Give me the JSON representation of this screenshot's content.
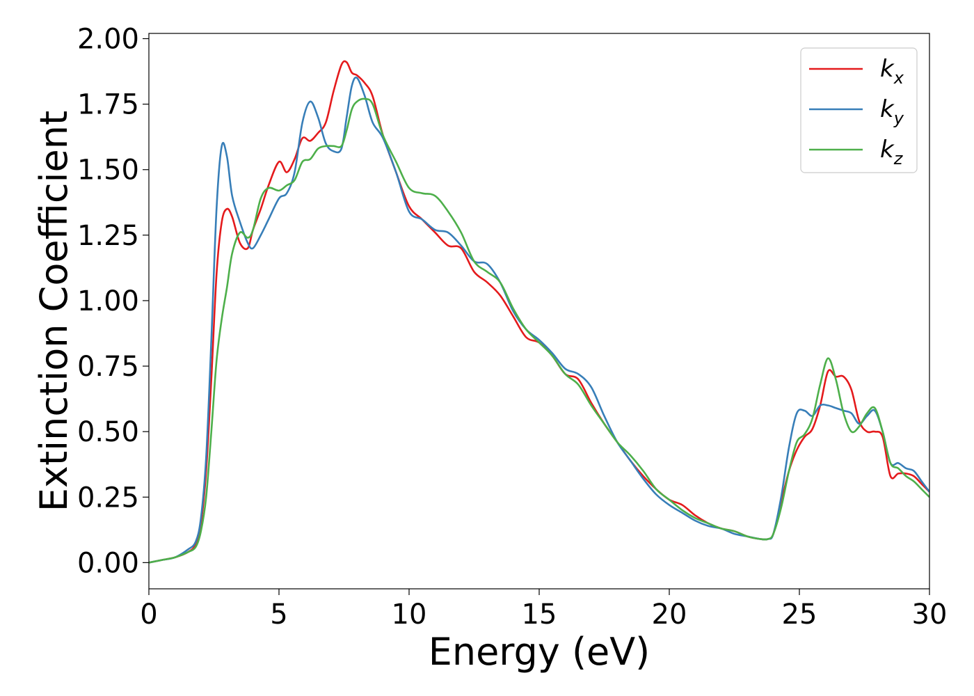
{
  "chart_data": {
    "type": "line",
    "xlabel": "Energy (eV)",
    "ylabel": "Extinction Coefficient",
    "xlim": [
      0,
      30
    ],
    "ylim": [
      -0.1,
      2.02
    ],
    "xticks": [
      0,
      5,
      10,
      15,
      20,
      25,
      30
    ],
    "xtick_labels": [
      "0",
      "5",
      "10",
      "15",
      "20",
      "25",
      "30"
    ],
    "yticks": [
      0.0,
      0.25,
      0.5,
      0.75,
      1.0,
      1.25,
      1.5,
      1.75,
      2.0
    ],
    "ytick_labels": [
      "0.00",
      "0.25",
      "0.50",
      "0.75",
      "1.00",
      "1.25",
      "1.50",
      "1.75",
      "2.00"
    ],
    "grid": false,
    "legend_position": "top-right",
    "series": [
      {
        "name": "k",
        "subscript": "x",
        "color": "#e41a1c",
        "x": [
          0,
          0.5,
          1.0,
          1.5,
          1.8,
          2.0,
          2.2,
          2.4,
          2.6,
          2.8,
          3.0,
          3.2,
          3.5,
          3.8,
          4.0,
          4.3,
          4.6,
          5.0,
          5.3,
          5.6,
          5.9,
          6.2,
          6.5,
          6.8,
          7.1,
          7.4,
          7.6,
          7.8,
          8.0,
          8.3,
          8.6,
          9.0,
          9.5,
          10.0,
          10.5,
          11.0,
          11.5,
          12.0,
          12.5,
          13.0,
          13.5,
          14.0,
          14.5,
          15.0,
          15.5,
          16.0,
          16.5,
          17.0,
          17.5,
          18.0,
          18.5,
          19.0,
          19.5,
          20.0,
          20.5,
          21.0,
          21.5,
          22.0,
          22.5,
          23.0,
          23.5,
          23.8,
          24.0,
          24.3,
          24.6,
          24.9,
          25.2,
          25.5,
          25.8,
          26.1,
          26.4,
          26.7,
          27.0,
          27.3,
          27.6,
          27.9,
          28.2,
          28.5,
          28.8,
          29.1,
          29.4,
          29.7,
          30.0
        ],
        "y": [
          0.0,
          0.01,
          0.02,
          0.04,
          0.07,
          0.15,
          0.35,
          0.7,
          1.1,
          1.3,
          1.35,
          1.32,
          1.22,
          1.2,
          1.27,
          1.35,
          1.44,
          1.53,
          1.49,
          1.54,
          1.62,
          1.61,
          1.64,
          1.68,
          1.8,
          1.9,
          1.91,
          1.87,
          1.86,
          1.83,
          1.78,
          1.63,
          1.49,
          1.36,
          1.31,
          1.26,
          1.21,
          1.2,
          1.11,
          1.07,
          1.02,
          0.94,
          0.86,
          0.84,
          0.79,
          0.72,
          0.7,
          0.61,
          0.53,
          0.46,
          0.39,
          0.33,
          0.28,
          0.24,
          0.22,
          0.18,
          0.15,
          0.13,
          0.12,
          0.1,
          0.09,
          0.09,
          0.11,
          0.23,
          0.35,
          0.43,
          0.48,
          0.51,
          0.6,
          0.73,
          0.71,
          0.71,
          0.66,
          0.54,
          0.5,
          0.5,
          0.48,
          0.33,
          0.34,
          0.34,
          0.33,
          0.3,
          0.27
        ]
      },
      {
        "name": "k",
        "subscript": "y",
        "color": "#377eb8",
        "x": [
          0,
          0.5,
          1.0,
          1.5,
          1.8,
          2.0,
          2.2,
          2.4,
          2.6,
          2.8,
          3.0,
          3.2,
          3.5,
          3.8,
          4.0,
          4.3,
          4.6,
          5.0,
          5.3,
          5.6,
          5.9,
          6.2,
          6.5,
          6.8,
          7.1,
          7.4,
          7.6,
          7.8,
          8.0,
          8.3,
          8.6,
          9.0,
          9.5,
          10.0,
          10.5,
          11.0,
          11.5,
          12.0,
          12.5,
          13.0,
          13.5,
          14.0,
          14.5,
          15.0,
          15.5,
          16.0,
          16.5,
          17.0,
          17.5,
          18.0,
          18.5,
          19.0,
          19.5,
          20.0,
          20.5,
          21.0,
          21.5,
          22.0,
          22.5,
          23.0,
          23.5,
          23.8,
          24.0,
          24.3,
          24.6,
          24.9,
          25.2,
          25.5,
          25.8,
          26.1,
          26.4,
          26.7,
          27.0,
          27.3,
          27.6,
          27.9,
          28.2,
          28.5,
          28.8,
          29.1,
          29.4,
          29.7,
          30.0
        ],
        "y": [
          0.0,
          0.01,
          0.02,
          0.05,
          0.08,
          0.17,
          0.4,
          0.85,
          1.35,
          1.59,
          1.55,
          1.4,
          1.3,
          1.22,
          1.2,
          1.25,
          1.31,
          1.39,
          1.41,
          1.49,
          1.68,
          1.76,
          1.7,
          1.6,
          1.57,
          1.58,
          1.7,
          1.82,
          1.85,
          1.78,
          1.68,
          1.62,
          1.49,
          1.34,
          1.31,
          1.27,
          1.26,
          1.21,
          1.15,
          1.14,
          1.07,
          0.96,
          0.89,
          0.85,
          0.8,
          0.74,
          0.72,
          0.67,
          0.56,
          0.46,
          0.39,
          0.32,
          0.26,
          0.22,
          0.19,
          0.16,
          0.14,
          0.13,
          0.11,
          0.1,
          0.09,
          0.09,
          0.11,
          0.25,
          0.44,
          0.57,
          0.58,
          0.56,
          0.6,
          0.6,
          0.59,
          0.58,
          0.57,
          0.53,
          0.56,
          0.58,
          0.5,
          0.38,
          0.38,
          0.36,
          0.35,
          0.31,
          0.27
        ]
      },
      {
        "name": "k",
        "subscript": "z",
        "color": "#4daf4a",
        "x": [
          0,
          0.5,
          1.0,
          1.5,
          1.8,
          2.0,
          2.2,
          2.4,
          2.6,
          2.8,
          3.0,
          3.2,
          3.5,
          3.8,
          4.0,
          4.3,
          4.6,
          5.0,
          5.3,
          5.6,
          5.9,
          6.2,
          6.5,
          6.8,
          7.1,
          7.4,
          7.6,
          7.8,
          8.0,
          8.3,
          8.6,
          9.0,
          9.5,
          10.0,
          10.5,
          11.0,
          11.5,
          12.0,
          12.5,
          13.0,
          13.5,
          14.0,
          14.5,
          15.0,
          15.5,
          16.0,
          16.5,
          17.0,
          17.5,
          18.0,
          18.5,
          19.0,
          19.5,
          20.0,
          20.5,
          21.0,
          21.5,
          22.0,
          22.5,
          23.0,
          23.5,
          23.8,
          24.0,
          24.3,
          24.6,
          24.9,
          25.2,
          25.5,
          25.8,
          26.1,
          26.4,
          26.7,
          27.0,
          27.3,
          27.6,
          27.9,
          28.2,
          28.5,
          28.8,
          29.1,
          29.4,
          29.7,
          30.0
        ],
        "y": [
          0.0,
          0.01,
          0.02,
          0.04,
          0.06,
          0.12,
          0.25,
          0.5,
          0.77,
          0.93,
          1.05,
          1.18,
          1.26,
          1.24,
          1.27,
          1.39,
          1.43,
          1.42,
          1.44,
          1.46,
          1.53,
          1.54,
          1.58,
          1.59,
          1.59,
          1.59,
          1.65,
          1.73,
          1.76,
          1.77,
          1.75,
          1.63,
          1.53,
          1.43,
          1.41,
          1.4,
          1.34,
          1.26,
          1.15,
          1.11,
          1.07,
          0.97,
          0.89,
          0.84,
          0.79,
          0.72,
          0.68,
          0.6,
          0.53,
          0.46,
          0.41,
          0.35,
          0.28,
          0.24,
          0.2,
          0.17,
          0.15,
          0.13,
          0.12,
          0.1,
          0.09,
          0.09,
          0.11,
          0.21,
          0.35,
          0.46,
          0.49,
          0.55,
          0.68,
          0.78,
          0.7,
          0.57,
          0.5,
          0.52,
          0.57,
          0.59,
          0.5,
          0.38,
          0.36,
          0.33,
          0.31,
          0.28,
          0.25
        ]
      }
    ]
  }
}
